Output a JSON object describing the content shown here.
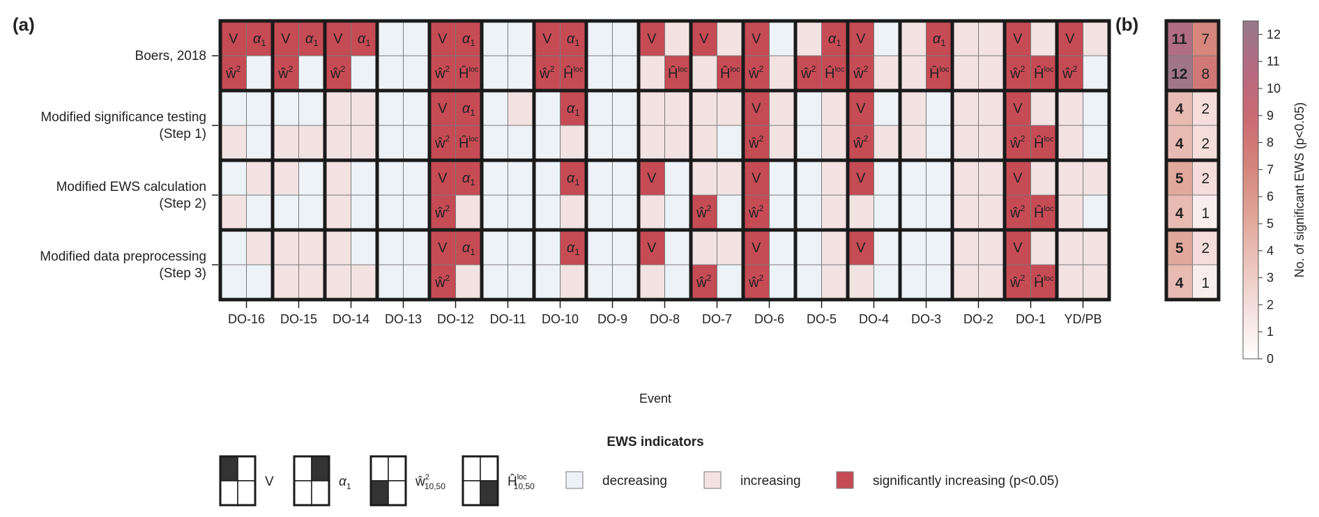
{
  "panel_a_label": "(a)",
  "panel_b_label": "(b)",
  "chart_data": [
    {
      "type": "heatmap",
      "panel": "(a)",
      "xlabel": "Event",
      "events": [
        "DO-16",
        "DO-15",
        "DO-14",
        "DO-13",
        "DO-12",
        "DO-11",
        "DO-10",
        "DO-9",
        "DO-8",
        "DO-7",
        "DO-6",
        "DO-5",
        "DO-4",
        "DO-3",
        "DO-2",
        "DO-1",
        "YD/PB"
      ],
      "indicator_order_in_cell": [
        "V (top-left)",
        "alpha1 (top-right)",
        "w2 (bottom-left)",
        "Hloc (bottom-right)"
      ],
      "state_codes": {
        "d": "decreasing",
        "i": "increasing",
        "s": "significantly increasing (p<0.05)"
      },
      "cell_symbols": {
        "V": "V",
        "alpha": "α",
        "alpha_sub": "1",
        "w": "ŵ",
        "w_sup": "2",
        "H": "Ĥ",
        "H_sup": "loc"
      },
      "rows": [
        {
          "label_lines": [
            "Boers, 2018"
          ],
          "states": [
            "sssd",
            "sssd",
            "sssd",
            "dddd",
            "ssss",
            "dddd",
            "ssss",
            "dddd",
            "siis",
            "siis",
            "sdsi",
            "isss",
            "sdsi",
            "isis",
            "iiii",
            "siss",
            "sisd"
          ]
        },
        {
          "label_lines": [
            "Modified significance testing",
            "(Step 1)"
          ],
          "states": [
            "ddid",
            "ddii",
            "iiii",
            "dddd",
            "ssss",
            "didd",
            "dsdi",
            "dddd",
            "iiii",
            "iiid",
            "sisi",
            "didi",
            "sdsi",
            "idid",
            "iiii",
            "siss",
            "idid"
          ]
        },
        {
          "label_lines": [
            "Modified EWS calculation",
            "(Step 2)"
          ],
          "states": [
            "diid",
            "iddd",
            "idid",
            "dddd",
            "sssi",
            "dddd",
            "dsdi",
            "dddd",
            "sdid",
            "iisd",
            "sdsd",
            "didi",
            "sdid",
            "dddd",
            "iiii",
            "siss",
            "iiid"
          ]
        },
        {
          "label_lines": [
            "Modified data preprocessing",
            "(Step 3)"
          ],
          "states": [
            "didd",
            "iiii",
            "idii",
            "dddd",
            "sssi",
            "dddd",
            "dsdi",
            "dddd",
            "sdid",
            "iisd",
            "sdsd",
            "didi",
            "sdid",
            "dddd",
            "iiii",
            "siss",
            "iiii"
          ]
        }
      ]
    },
    {
      "type": "heatmap",
      "panel": "(b)",
      "colorbar_label": "No. of significant EWS (p<0.05)",
      "colorbar_ticks": [
        0,
        1,
        2,
        3,
        4,
        5,
        6,
        7,
        8,
        9,
        10,
        11,
        12
      ],
      "colorbar_range": [
        0,
        12.5
      ],
      "values": [
        [
          11,
          7
        ],
        [
          12,
          8
        ],
        [
          4,
          2
        ],
        [
          4,
          2
        ],
        [
          5,
          2
        ],
        [
          4,
          1
        ],
        [
          5,
          2
        ],
        [
          4,
          1
        ]
      ],
      "bold_first_column": true
    }
  ],
  "legend": {
    "title": "EWS indicators",
    "indicators": [
      {
        "quadrant": "top-left",
        "label": "V"
      },
      {
        "quadrant": "top-right",
        "label": "α",
        "sub": "1"
      },
      {
        "quadrant": "bottom-left",
        "label": "ŵ",
        "sup": "2",
        "sub": "10,50"
      },
      {
        "quadrant": "bottom-right",
        "label": "Ĥ",
        "sup": "loc",
        "sub": "10,50"
      }
    ],
    "states": [
      {
        "key": "d",
        "label": "decreasing"
      },
      {
        "key": "i",
        "label": "increasing"
      },
      {
        "key": "s",
        "label": "significantly increasing (p<0.05)"
      }
    ]
  },
  "colors": {
    "decreasing": "#edf2f7",
    "increasing": "#f3e2e2",
    "significant": "#c54b55",
    "frame": "#1a1a1a",
    "grid": "#7a7a7a",
    "legend_fill": "#333333",
    "colorbar_stops": [
      "#ffffff",
      "#f5e1df",
      "#ebc3bb",
      "#dfa395",
      "#d5847b",
      "#cb6a72",
      "#b56a82",
      "#977a8a"
    ]
  }
}
